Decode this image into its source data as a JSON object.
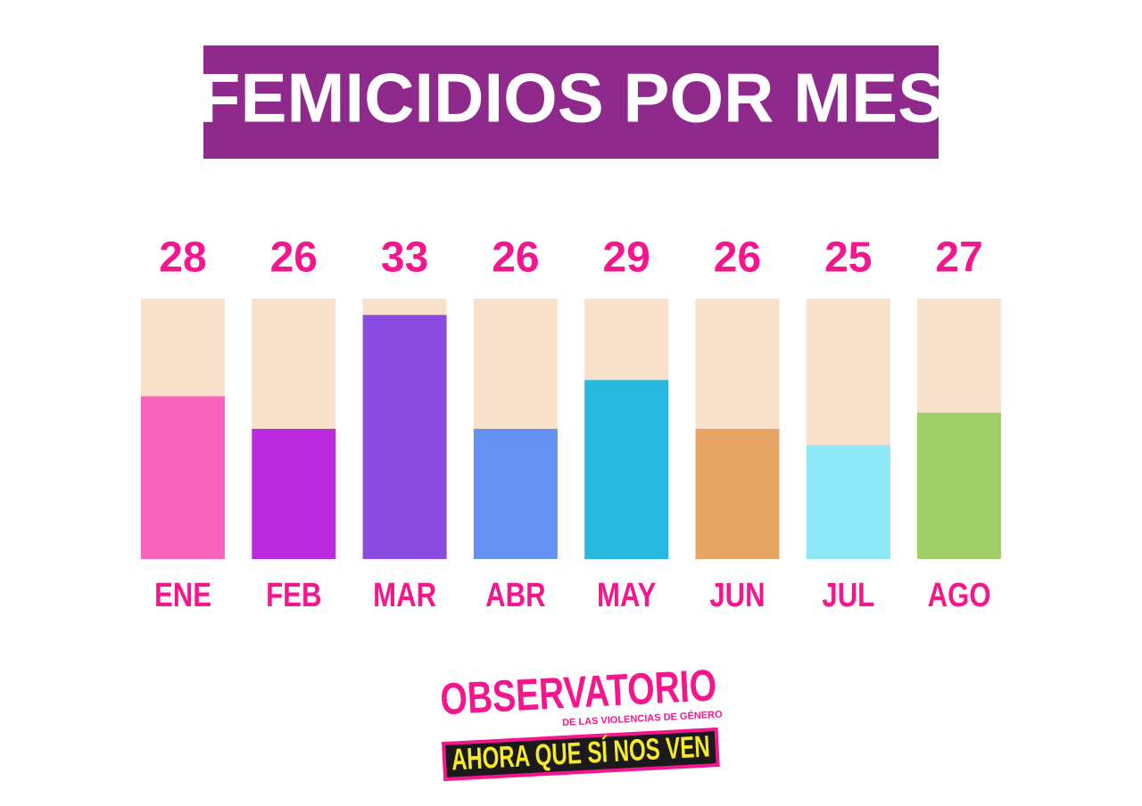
{
  "chart_data": {
    "type": "bar",
    "title": "FEMICIDIOS POR MES",
    "categories": [
      "ENE",
      "FEB",
      "MAR",
      "ABR",
      "MAY",
      "JUN",
      "JUL",
      "AGO"
    ],
    "values": [
      28,
      26,
      33,
      26,
      29,
      26,
      25,
      27
    ],
    "colors": [
      "#f864bc",
      "#bc2adf",
      "#894be0",
      "#6591f2",
      "#27b7df",
      "#e6a564",
      "#8ee8f6",
      "#a0cf68"
    ],
    "track_color": "#f8e0ca",
    "label_color": "#f5168e",
    "title_background": "#8f2a8c",
    "ylim": [
      18,
      34
    ]
  },
  "logo": {
    "title": "OBSERVATORIO",
    "subtitle": "DE LAS VIOLENCIAS DE GÉNERO",
    "tagline": "AHORA QUE SÍ NOS VEN"
  }
}
